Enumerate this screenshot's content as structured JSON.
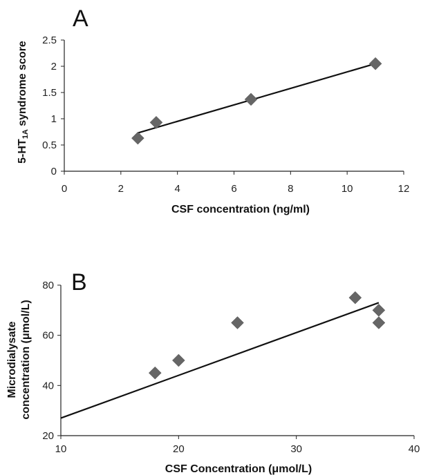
{
  "chart_data": [
    {
      "type": "scatter",
      "panel_label": "A",
      "xlabel": "CSF concentration (ng/ml)",
      "ylabel": "5-HT1A syndrome score",
      "ylabel_parts": {
        "prefix": "5-HT",
        "subscript": "1A",
        "suffix": " syndrome score"
      },
      "xlim": [
        0,
        12
      ],
      "ylim": [
        0,
        2.5
      ],
      "x_ticks": [
        "0",
        "2",
        "4",
        "6",
        "8",
        "10",
        "12"
      ],
      "y_ticks": [
        "0",
        "0.5",
        "1",
        "1.5",
        "2",
        "2.5"
      ],
      "grid": false,
      "legend": false,
      "marker": "diamond",
      "marker_color": "#666666",
      "points": [
        {
          "x": 2.6,
          "y": 0.63
        },
        {
          "x": 3.25,
          "y": 0.93
        },
        {
          "x": 6.6,
          "y": 1.37
        },
        {
          "x": 11.0,
          "y": 2.05
        }
      ],
      "trendline": {
        "x": [
          2.6,
          11.0
        ],
        "y": [
          0.73,
          2.05
        ]
      }
    },
    {
      "type": "scatter",
      "panel_label": "B",
      "xlabel": "CSF Concentration (μmol/L)",
      "ylabel_lines": [
        "Microdialysate",
        "concentration (μmol/L)"
      ],
      "xlim": [
        10,
        40
      ],
      "ylim": [
        20,
        80
      ],
      "x_ticks": [
        "10",
        "20",
        "30",
        "40"
      ],
      "y_ticks": [
        "20",
        "40",
        "60",
        "80"
      ],
      "grid": false,
      "legend": false,
      "marker": "diamond",
      "marker_color": "#666666",
      "points": [
        {
          "x": 18,
          "y": 45
        },
        {
          "x": 20,
          "y": 50
        },
        {
          "x": 25,
          "y": 65
        },
        {
          "x": 35,
          "y": 75
        },
        {
          "x": 37,
          "y": 70
        },
        {
          "x": 37,
          "y": 65
        }
      ],
      "trendline": {
        "x": [
          10,
          37
        ],
        "y": [
          27,
          73
        ]
      }
    }
  ]
}
